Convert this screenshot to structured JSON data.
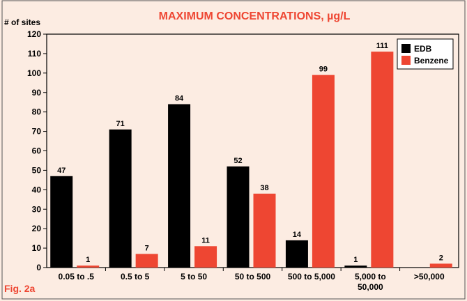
{
  "figure_label": "Fig. 2a",
  "chart_data": {
    "type": "bar",
    "title": "MAXIMUM CONCENTRATIONS, µg/L",
    "ylabel": "# of sites",
    "xlabel": "",
    "categories": [
      [
        "0.05 to .5"
      ],
      [
        "0.5 to 5"
      ],
      [
        "5 to 50"
      ],
      [
        "50 to 500"
      ],
      [
        "500 to 5,000"
      ],
      [
        "5,000 to",
        "50,000"
      ],
      [
        ">50,000"
      ]
    ],
    "series": [
      {
        "name": "EDB",
        "color": "#000000",
        "values": [
          47,
          71,
          84,
          52,
          14,
          1,
          null
        ]
      },
      {
        "name": "Benzene",
        "color": "#ee4632",
        "values": [
          1,
          7,
          11,
          38,
          99,
          111,
          2
        ]
      }
    ],
    "ylim": [
      0,
      120
    ],
    "yticks": [
      0,
      10,
      20,
      30,
      40,
      50,
      60,
      70,
      80,
      90,
      100,
      110,
      120
    ],
    "grid": false,
    "legend_position": "top-right",
    "background_color": "#fcece2",
    "title_color": "#ee4632",
    "figure_label_color": "#ee4632"
  }
}
